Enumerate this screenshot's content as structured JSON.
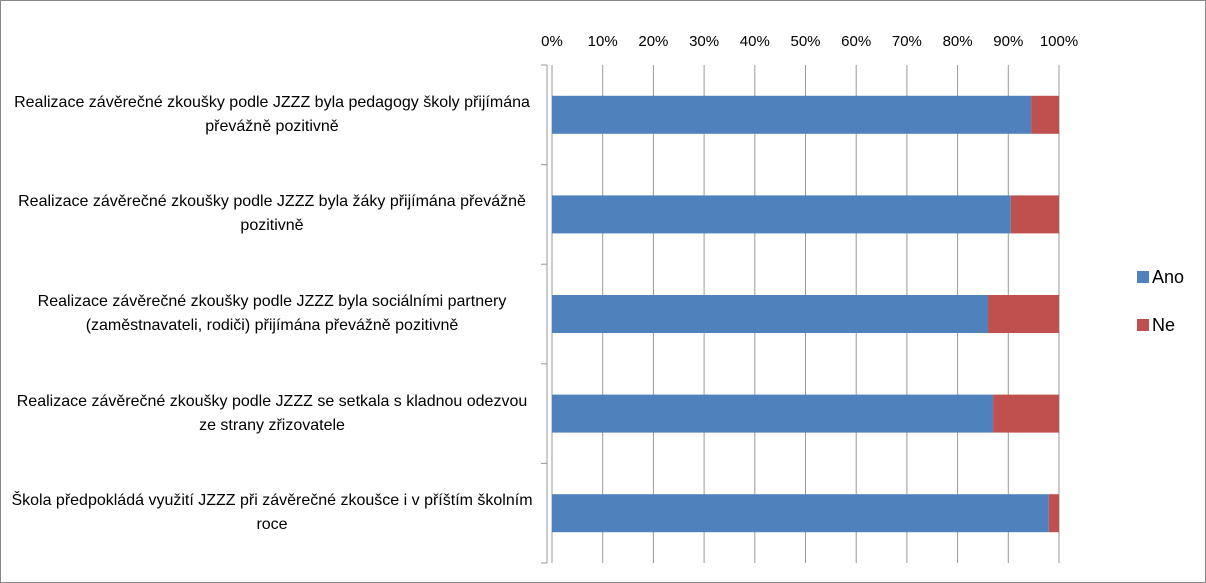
{
  "chart_data": {
    "type": "stacked_barh",
    "categories": [
      "Realizace závěrečné zkoušky podle JZZZ byla pedagogy školy přijímána převážně pozitivně",
      "Realizace závěrečné zkoušky podle JZZZ byla žáky přijímána převážně pozitivně",
      "Realizace závěrečné zkoušky podle JZZZ byla sociálními partnery (zaměstnavateli, rodiči) přijímána převážně pozitivně",
      "Realizace závěrečné zkoušky podle JZZZ se setkala s kladnou odezvou ze strany zřizovatele",
      "Škola předpokládá využití JZZZ při závěrečné zkoušce i v příštím školním roce"
    ],
    "series": [
      {
        "name": "Ano",
        "color": "#4f81bd",
        "values": [
          94.5,
          90.5,
          86,
          87,
          98
        ]
      },
      {
        "name": "Ne",
        "color": "#c0504d",
        "values": [
          5.5,
          9.5,
          14,
          13,
          2
        ]
      }
    ],
    "xlim": [
      0,
      100
    ],
    "xticks": [
      {
        "value": 0,
        "label": "0%"
      },
      {
        "value": 10,
        "label": "10%"
      },
      {
        "value": 20,
        "label": "20%"
      },
      {
        "value": 30,
        "label": "30%"
      },
      {
        "value": 40,
        "label": "40%"
      },
      {
        "value": 50,
        "label": "50%"
      },
      {
        "value": 60,
        "label": "60%"
      },
      {
        "value": 70,
        "label": "70%"
      },
      {
        "value": 80,
        "label": "80%"
      },
      {
        "value": 90,
        "label": "90%"
      },
      {
        "value": 100,
        "label": "100%"
      }
    ],
    "grid": true,
    "legend": "right"
  }
}
